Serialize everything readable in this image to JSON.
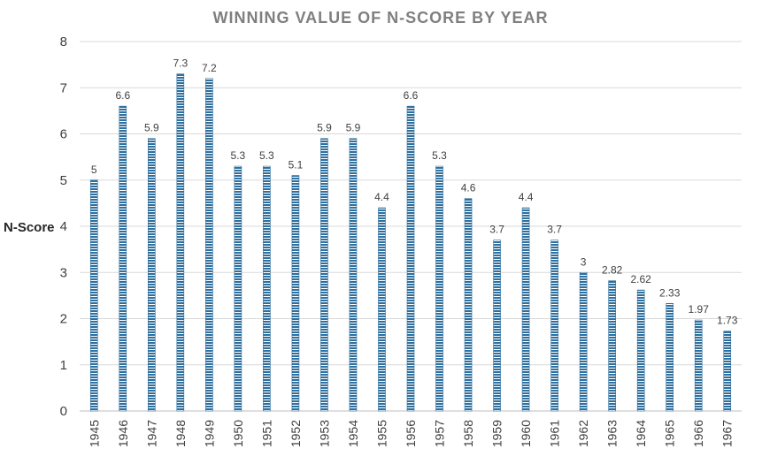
{
  "chart_data": {
    "type": "bar",
    "title": "WINNING VALUE OF N-SCORE BY YEAR",
    "xlabel": "",
    "ylabel": "N-Score",
    "ylim": [
      0,
      8
    ],
    "yticks": [
      "0",
      "1",
      "2",
      "3",
      "4",
      "5",
      "6",
      "7",
      "8"
    ],
    "grid": true,
    "legend": "none",
    "bar_color": "#2e6f9e",
    "categories": [
      "1945",
      "1946",
      "1947",
      "1948",
      "1949",
      "1950",
      "1951",
      "1952",
      "1953",
      "1954",
      "1955",
      "1956",
      "1957",
      "1958",
      "1959",
      "1960",
      "1961",
      "1962",
      "1963",
      "1964",
      "1965",
      "1966",
      "1967"
    ],
    "values": [
      5,
      6.6,
      5.9,
      7.3,
      7.2,
      5.3,
      5.3,
      5.1,
      5.9,
      5.9,
      4.4,
      6.6,
      5.3,
      4.6,
      3.7,
      4.4,
      3.7,
      3,
      2.82,
      2.62,
      2.33,
      1.97,
      1.73
    ],
    "data_labels": [
      "5",
      "6.6",
      "5.9",
      "7.3",
      "7.2",
      "5.3",
      "5.3",
      "5.1",
      "5.9",
      "5.9",
      "4.4",
      "6.6",
      "5.3",
      "4.6",
      "3.7",
      "4.4",
      "3.7",
      "3",
      "2.82",
      "2.62",
      "2.33",
      "1.97",
      "1.73"
    ]
  }
}
